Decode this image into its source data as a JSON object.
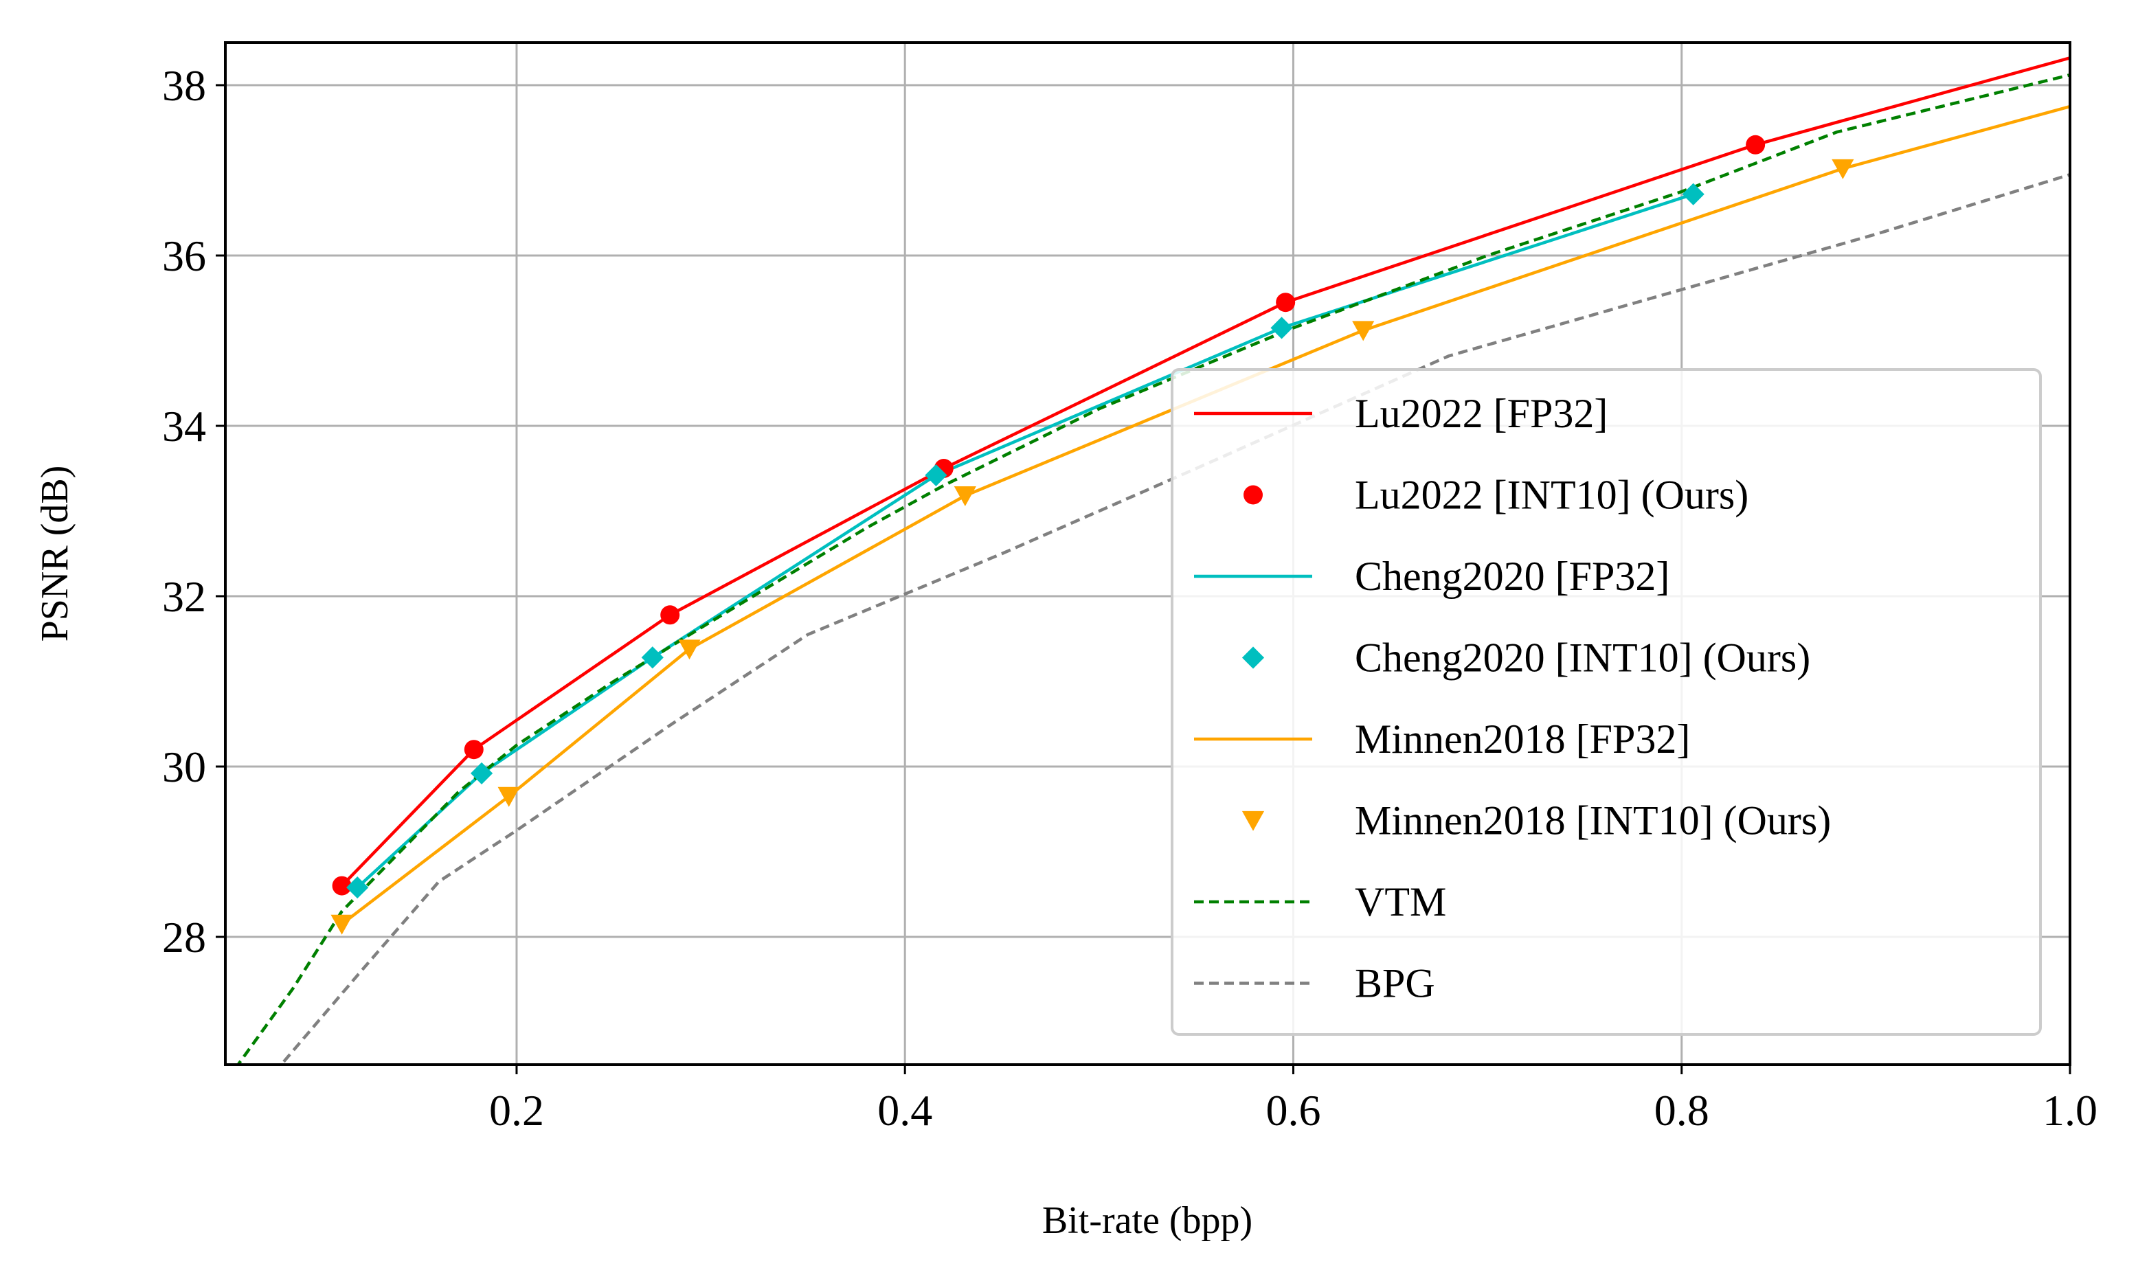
{
  "chart_data": {
    "type": "line",
    "title": "",
    "xlabel": "Bit-rate (bpp)",
    "ylabel": "PSNR (dB)",
    "xlim": [
      0.05,
      1.0
    ],
    "ylim": [
      26.5,
      38.5
    ],
    "x_ticks": [
      0.2,
      0.4,
      0.6,
      0.8,
      1.0
    ],
    "x_tick_labels": [
      "0.2",
      "0.4",
      "0.6",
      "0.8",
      "1.0"
    ],
    "y_ticks": [
      28,
      30,
      32,
      34,
      36,
      38
    ],
    "y_tick_labels": [
      "28",
      "30",
      "32",
      "34",
      "36",
      "38"
    ],
    "grid": true,
    "legend_position": "lower-right",
    "series": [
      {
        "name": "Lu2022 [FP32]",
        "kind": "line",
        "dash": "solid",
        "color": "#ff0000",
        "x": [
          0.11,
          0.178,
          0.279,
          0.42,
          0.596,
          0.838,
          1.0
        ],
        "y": [
          28.6,
          30.2,
          31.78,
          33.5,
          35.45,
          37.3,
          38.32
        ]
      },
      {
        "name": "Lu2022 [INT10] (Ours)",
        "kind": "marker",
        "marker": "circle",
        "color": "#ff0000",
        "x": [
          0.11,
          0.178,
          0.279,
          0.42,
          0.596,
          0.838
        ],
        "y": [
          28.6,
          30.2,
          31.78,
          33.5,
          35.45,
          37.3
        ]
      },
      {
        "name": "Cheng2020 [FP32]",
        "kind": "line",
        "dash": "solid",
        "color": "#00bfbf",
        "x": [
          0.118,
          0.182,
          0.27,
          0.416,
          0.594,
          0.806
        ],
        "y": [
          28.58,
          29.92,
          31.28,
          33.42,
          35.15,
          36.72
        ]
      },
      {
        "name": "Cheng2020 [INT10] (Ours)",
        "kind": "marker",
        "marker": "diamond",
        "color": "#00bfbf",
        "x": [
          0.118,
          0.182,
          0.27,
          0.416,
          0.594,
          0.806
        ],
        "y": [
          28.58,
          29.92,
          31.28,
          33.42,
          35.15,
          36.72
        ]
      },
      {
        "name": "Minnen2018 [FP32]",
        "kind": "line",
        "dash": "solid",
        "color": "#ffa500",
        "x": [
          0.11,
          0.196,
          0.289,
          0.431,
          0.636,
          0.883,
          1.0
        ],
        "y": [
          28.15,
          29.65,
          31.38,
          33.18,
          35.12,
          37.02,
          37.75
        ]
      },
      {
        "name": "Minnen2018 [INT10] (Ours)",
        "kind": "marker",
        "marker": "triangle-down",
        "color": "#ffa500",
        "x": [
          0.11,
          0.196,
          0.289,
          0.431,
          0.636,
          0.883
        ],
        "y": [
          28.15,
          29.65,
          31.38,
          33.18,
          35.12,
          37.02
        ]
      },
      {
        "name": "VTM",
        "kind": "line",
        "dash": "dashed",
        "color": "#008000",
        "x": [
          0.055,
          0.085,
          0.11,
          0.17,
          0.2,
          0.25,
          0.3,
          0.38,
          0.42,
          0.5,
          0.6,
          0.7,
          0.8,
          0.88,
          1.0
        ],
        "y": [
          26.45,
          27.4,
          28.3,
          29.7,
          30.25,
          31.0,
          31.7,
          32.8,
          33.3,
          34.2,
          35.15,
          36.0,
          36.75,
          37.45,
          38.12
        ]
      },
      {
        "name": "BPG",
        "kind": "line",
        "dash": "dashed",
        "color": "#808080",
        "x": [
          0.075,
          0.12,
          0.16,
          0.2,
          0.28,
          0.35,
          0.45,
          0.55,
          0.68,
          0.8,
          0.9,
          1.0
        ],
        "y": [
          26.4,
          27.6,
          28.65,
          29.25,
          30.5,
          31.55,
          32.5,
          33.5,
          34.82,
          35.6,
          36.25,
          36.95
        ]
      }
    ]
  }
}
